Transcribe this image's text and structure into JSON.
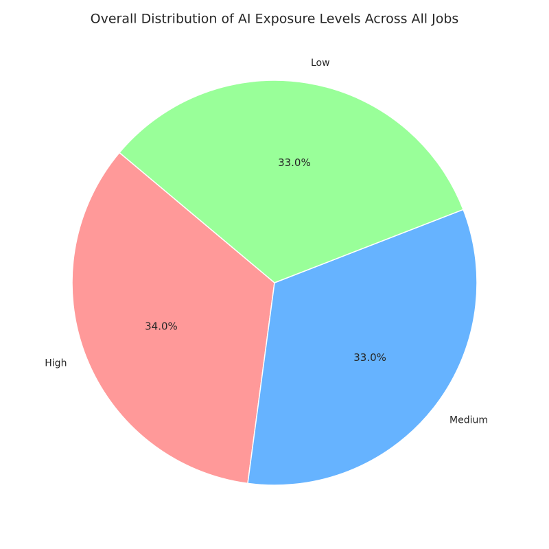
{
  "chart_data": {
    "type": "pie",
    "title": "Overall Distribution of AI Exposure Levels Across All Jobs",
    "categories": [
      "High",
      "Medium",
      "Low"
    ],
    "values": [
      34,
      33,
      33
    ],
    "value_labels": [
      "34.0%",
      "33.0%",
      "33.0%"
    ],
    "colors": [
      "#ff9999",
      "#66b3ff",
      "#99ff99"
    ]
  }
}
